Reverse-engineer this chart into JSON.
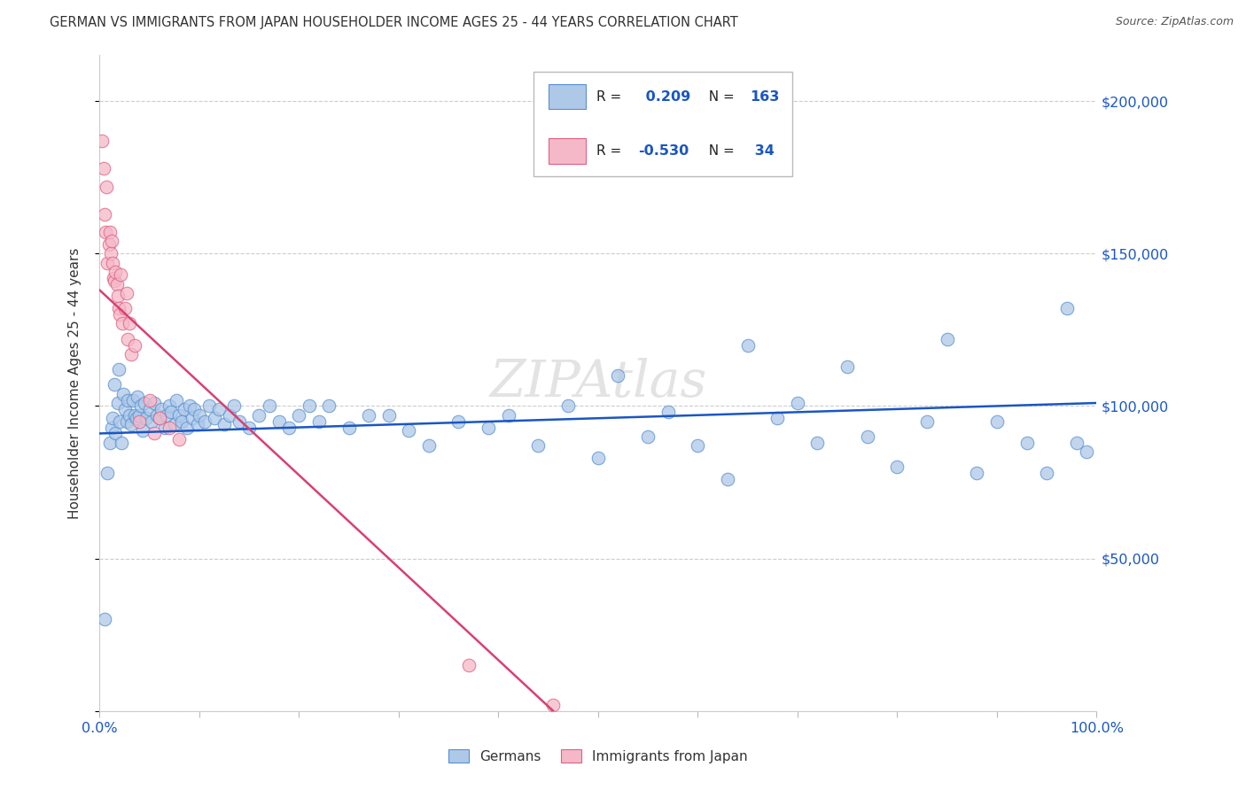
{
  "title": "GERMAN VS IMMIGRANTS FROM JAPAN HOUSEHOLDER INCOME AGES 25 - 44 YEARS CORRELATION CHART",
  "source": "Source: ZipAtlas.com",
  "ylabel": "Householder Income Ages 25 - 44 years",
  "xlim": [
    0,
    1.0
  ],
  "ylim": [
    0,
    215000
  ],
  "yticks": [
    0,
    50000,
    100000,
    150000,
    200000
  ],
  "blue_R": "0.209",
  "blue_N": "163",
  "pink_R": "-0.530",
  "pink_N": "34",
  "blue_color": "#aec8e8",
  "pink_color": "#f5b8c8",
  "blue_edge_color": "#5590d0",
  "pink_edge_color": "#e06080",
  "blue_line_color": "#1a56c4",
  "pink_line_color": "#d94070",
  "watermark": "ZIPAtlas",
  "blue_line_x": [
    0.0,
    1.0
  ],
  "blue_line_y": [
    91000,
    101000
  ],
  "pink_line_x": [
    0.0,
    0.455
  ],
  "pink_line_y": [
    138000,
    0
  ],
  "blue_scatter_x": [
    0.005,
    0.008,
    0.01,
    0.012,
    0.013,
    0.015,
    0.016,
    0.018,
    0.019,
    0.02,
    0.022,
    0.024,
    0.025,
    0.027,
    0.028,
    0.03,
    0.032,
    0.033,
    0.035,
    0.037,
    0.038,
    0.04,
    0.041,
    0.043,
    0.045,
    0.047,
    0.05,
    0.052,
    0.055,
    0.057,
    0.06,
    0.062,
    0.065,
    0.067,
    0.07,
    0.072,
    0.075,
    0.077,
    0.08,
    0.082,
    0.085,
    0.088,
    0.09,
    0.093,
    0.095,
    0.098,
    0.1,
    0.105,
    0.11,
    0.115,
    0.12,
    0.125,
    0.13,
    0.135,
    0.14,
    0.15,
    0.16,
    0.17,
    0.18,
    0.19,
    0.2,
    0.21,
    0.22,
    0.23,
    0.25,
    0.27,
    0.29,
    0.31,
    0.33,
    0.36,
    0.39,
    0.41,
    0.44,
    0.47,
    0.5,
    0.52,
    0.55,
    0.57,
    0.6,
    0.63,
    0.65,
    0.68,
    0.7,
    0.72,
    0.75,
    0.77,
    0.8,
    0.83,
    0.85,
    0.88,
    0.9,
    0.93,
    0.95,
    0.97,
    0.98,
    0.99
  ],
  "blue_scatter_y": [
    30000,
    78000,
    88000,
    93000,
    96000,
    107000,
    91000,
    101000,
    112000,
    95000,
    88000,
    104000,
    99000,
    95000,
    102000,
    97000,
    94000,
    102000,
    97000,
    96000,
    103000,
    97000,
    100000,
    92000,
    101000,
    96000,
    99000,
    95000,
    101000,
    97000,
    96000,
    99000,
    93000,
    97000,
    100000,
    98000,
    94000,
    102000,
    97000,
    95000,
    99000,
    93000,
    100000,
    96000,
    99000,
    94000,
    97000,
    95000,
    100000,
    96000,
    99000,
    94000,
    97000,
    100000,
    95000,
    93000,
    97000,
    100000,
    95000,
    93000,
    97000,
    100000,
    95000,
    100000,
    93000,
    97000,
    97000,
    92000,
    87000,
    95000,
    93000,
    97000,
    87000,
    100000,
    83000,
    110000,
    90000,
    98000,
    87000,
    76000,
    120000,
    96000,
    101000,
    88000,
    113000,
    90000,
    80000,
    95000,
    122000,
    78000,
    95000,
    88000,
    78000,
    132000,
    88000,
    85000
  ],
  "pink_scatter_x": [
    0.002,
    0.004,
    0.005,
    0.006,
    0.007,
    0.008,
    0.009,
    0.01,
    0.011,
    0.012,
    0.013,
    0.014,
    0.015,
    0.016,
    0.017,
    0.018,
    0.019,
    0.02,
    0.021,
    0.023,
    0.025,
    0.027,
    0.028,
    0.03,
    0.032,
    0.035,
    0.04,
    0.05,
    0.055,
    0.06,
    0.07,
    0.08,
    0.37,
    0.455
  ],
  "pink_scatter_y": [
    187000,
    178000,
    163000,
    157000,
    172000,
    147000,
    153000,
    157000,
    150000,
    154000,
    147000,
    142000,
    141000,
    144000,
    140000,
    136000,
    132000,
    130000,
    143000,
    127000,
    132000,
    137000,
    122000,
    127000,
    117000,
    120000,
    95000,
    102000,
    91000,
    96000,
    93000,
    89000,
    15000,
    2000
  ]
}
